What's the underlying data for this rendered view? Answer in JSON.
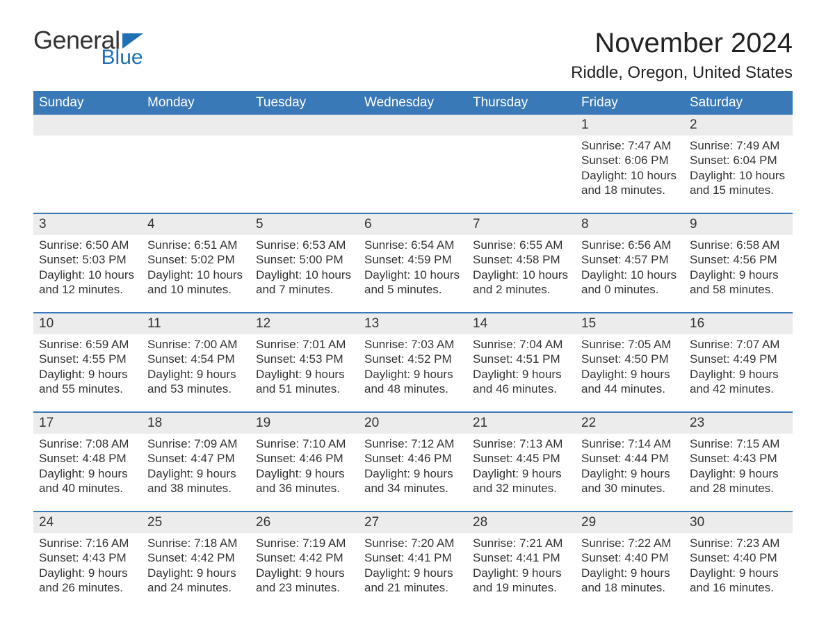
{
  "logo": {
    "word1": "General",
    "word2": "Blue",
    "color_word1": "#333333",
    "color_word2": "#1f6fb2",
    "tri_color": "#1f6fb2"
  },
  "title": "November 2024",
  "subtitle": "Riddle, Oregon, United States",
  "colors": {
    "header_bg": "#3a79b7",
    "header_text": "#ffffff",
    "daynum_bg": "#ececec",
    "border_top": "#3a79b7",
    "body_text": "#333333",
    "page_bg": "#ffffff"
  },
  "fonts": {
    "title_size": 40,
    "subtitle_size": 24,
    "dow_size": 19,
    "daynum_size": 19,
    "body_size": 17
  },
  "days_of_week": [
    "Sunday",
    "Monday",
    "Tuesday",
    "Wednesday",
    "Thursday",
    "Friday",
    "Saturday"
  ],
  "weeks": [
    [
      {
        "num": "",
        "sunrise": "",
        "sunset": "",
        "daylight1": "",
        "daylight2": ""
      },
      {
        "num": "",
        "sunrise": "",
        "sunset": "",
        "daylight1": "",
        "daylight2": ""
      },
      {
        "num": "",
        "sunrise": "",
        "sunset": "",
        "daylight1": "",
        "daylight2": ""
      },
      {
        "num": "",
        "sunrise": "",
        "sunset": "",
        "daylight1": "",
        "daylight2": ""
      },
      {
        "num": "",
        "sunrise": "",
        "sunset": "",
        "daylight1": "",
        "daylight2": ""
      },
      {
        "num": "1",
        "sunrise": "Sunrise: 7:47 AM",
        "sunset": "Sunset: 6:06 PM",
        "daylight1": "Daylight: 10 hours",
        "daylight2": "and 18 minutes."
      },
      {
        "num": "2",
        "sunrise": "Sunrise: 7:49 AM",
        "sunset": "Sunset: 6:04 PM",
        "daylight1": "Daylight: 10 hours",
        "daylight2": "and 15 minutes."
      }
    ],
    [
      {
        "num": "3",
        "sunrise": "Sunrise: 6:50 AM",
        "sunset": "Sunset: 5:03 PM",
        "daylight1": "Daylight: 10 hours",
        "daylight2": "and 12 minutes."
      },
      {
        "num": "4",
        "sunrise": "Sunrise: 6:51 AM",
        "sunset": "Sunset: 5:02 PM",
        "daylight1": "Daylight: 10 hours",
        "daylight2": "and 10 minutes."
      },
      {
        "num": "5",
        "sunrise": "Sunrise: 6:53 AM",
        "sunset": "Sunset: 5:00 PM",
        "daylight1": "Daylight: 10 hours",
        "daylight2": "and 7 minutes."
      },
      {
        "num": "6",
        "sunrise": "Sunrise: 6:54 AM",
        "sunset": "Sunset: 4:59 PM",
        "daylight1": "Daylight: 10 hours",
        "daylight2": "and 5 minutes."
      },
      {
        "num": "7",
        "sunrise": "Sunrise: 6:55 AM",
        "sunset": "Sunset: 4:58 PM",
        "daylight1": "Daylight: 10 hours",
        "daylight2": "and 2 minutes."
      },
      {
        "num": "8",
        "sunrise": "Sunrise: 6:56 AM",
        "sunset": "Sunset: 4:57 PM",
        "daylight1": "Daylight: 10 hours",
        "daylight2": "and 0 minutes."
      },
      {
        "num": "9",
        "sunrise": "Sunrise: 6:58 AM",
        "sunset": "Sunset: 4:56 PM",
        "daylight1": "Daylight: 9 hours",
        "daylight2": "and 58 minutes."
      }
    ],
    [
      {
        "num": "10",
        "sunrise": "Sunrise: 6:59 AM",
        "sunset": "Sunset: 4:55 PM",
        "daylight1": "Daylight: 9 hours",
        "daylight2": "and 55 minutes."
      },
      {
        "num": "11",
        "sunrise": "Sunrise: 7:00 AM",
        "sunset": "Sunset: 4:54 PM",
        "daylight1": "Daylight: 9 hours",
        "daylight2": "and 53 minutes."
      },
      {
        "num": "12",
        "sunrise": "Sunrise: 7:01 AM",
        "sunset": "Sunset: 4:53 PM",
        "daylight1": "Daylight: 9 hours",
        "daylight2": "and 51 minutes."
      },
      {
        "num": "13",
        "sunrise": "Sunrise: 7:03 AM",
        "sunset": "Sunset: 4:52 PM",
        "daylight1": "Daylight: 9 hours",
        "daylight2": "and 48 minutes."
      },
      {
        "num": "14",
        "sunrise": "Sunrise: 7:04 AM",
        "sunset": "Sunset: 4:51 PM",
        "daylight1": "Daylight: 9 hours",
        "daylight2": "and 46 minutes."
      },
      {
        "num": "15",
        "sunrise": "Sunrise: 7:05 AM",
        "sunset": "Sunset: 4:50 PM",
        "daylight1": "Daylight: 9 hours",
        "daylight2": "and 44 minutes."
      },
      {
        "num": "16",
        "sunrise": "Sunrise: 7:07 AM",
        "sunset": "Sunset: 4:49 PM",
        "daylight1": "Daylight: 9 hours",
        "daylight2": "and 42 minutes."
      }
    ],
    [
      {
        "num": "17",
        "sunrise": "Sunrise: 7:08 AM",
        "sunset": "Sunset: 4:48 PM",
        "daylight1": "Daylight: 9 hours",
        "daylight2": "and 40 minutes."
      },
      {
        "num": "18",
        "sunrise": "Sunrise: 7:09 AM",
        "sunset": "Sunset: 4:47 PM",
        "daylight1": "Daylight: 9 hours",
        "daylight2": "and 38 minutes."
      },
      {
        "num": "19",
        "sunrise": "Sunrise: 7:10 AM",
        "sunset": "Sunset: 4:46 PM",
        "daylight1": "Daylight: 9 hours",
        "daylight2": "and 36 minutes."
      },
      {
        "num": "20",
        "sunrise": "Sunrise: 7:12 AM",
        "sunset": "Sunset: 4:46 PM",
        "daylight1": "Daylight: 9 hours",
        "daylight2": "and 34 minutes."
      },
      {
        "num": "21",
        "sunrise": "Sunrise: 7:13 AM",
        "sunset": "Sunset: 4:45 PM",
        "daylight1": "Daylight: 9 hours",
        "daylight2": "and 32 minutes."
      },
      {
        "num": "22",
        "sunrise": "Sunrise: 7:14 AM",
        "sunset": "Sunset: 4:44 PM",
        "daylight1": "Daylight: 9 hours",
        "daylight2": "and 30 minutes."
      },
      {
        "num": "23",
        "sunrise": "Sunrise: 7:15 AM",
        "sunset": "Sunset: 4:43 PM",
        "daylight1": "Daylight: 9 hours",
        "daylight2": "and 28 minutes."
      }
    ],
    [
      {
        "num": "24",
        "sunrise": "Sunrise: 7:16 AM",
        "sunset": "Sunset: 4:43 PM",
        "daylight1": "Daylight: 9 hours",
        "daylight2": "and 26 minutes."
      },
      {
        "num": "25",
        "sunrise": "Sunrise: 7:18 AM",
        "sunset": "Sunset: 4:42 PM",
        "daylight1": "Daylight: 9 hours",
        "daylight2": "and 24 minutes."
      },
      {
        "num": "26",
        "sunrise": "Sunrise: 7:19 AM",
        "sunset": "Sunset: 4:42 PM",
        "daylight1": "Daylight: 9 hours",
        "daylight2": "and 23 minutes."
      },
      {
        "num": "27",
        "sunrise": "Sunrise: 7:20 AM",
        "sunset": "Sunset: 4:41 PM",
        "daylight1": "Daylight: 9 hours",
        "daylight2": "and 21 minutes."
      },
      {
        "num": "28",
        "sunrise": "Sunrise: 7:21 AM",
        "sunset": "Sunset: 4:41 PM",
        "daylight1": "Daylight: 9 hours",
        "daylight2": "and 19 minutes."
      },
      {
        "num": "29",
        "sunrise": "Sunrise: 7:22 AM",
        "sunset": "Sunset: 4:40 PM",
        "daylight1": "Daylight: 9 hours",
        "daylight2": "and 18 minutes."
      },
      {
        "num": "30",
        "sunrise": "Sunrise: 7:23 AM",
        "sunset": "Sunset: 4:40 PM",
        "daylight1": "Daylight: 9 hours",
        "daylight2": "and 16 minutes."
      }
    ]
  ]
}
